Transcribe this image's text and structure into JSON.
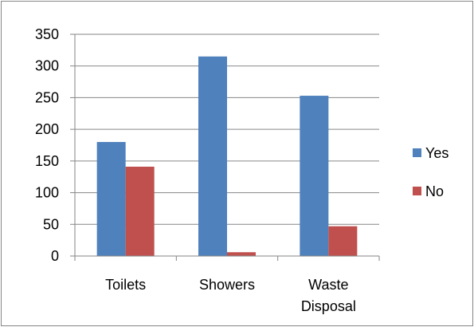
{
  "chart_data": {
    "type": "bar",
    "categories": [
      [
        "Toilets"
      ],
      [
        "Showers"
      ],
      [
        "Waste",
        "Disposal"
      ]
    ],
    "series": [
      {
        "name": "Yes",
        "values": [
          180,
          315,
          253
        ],
        "color": "#4F81BD"
      },
      {
        "name": "No",
        "values": [
          141,
          6,
          47
        ],
        "color": "#C0504D"
      }
    ],
    "ylim": [
      0,
      350
    ],
    "yticks": [
      "0",
      "50",
      "100",
      "150",
      "200",
      "250",
      "300",
      "350"
    ],
    "grid": true,
    "legend_position": "right",
    "colors": {
      "gridline": "#868686",
      "axis": "#868686",
      "border": "#868686"
    }
  }
}
